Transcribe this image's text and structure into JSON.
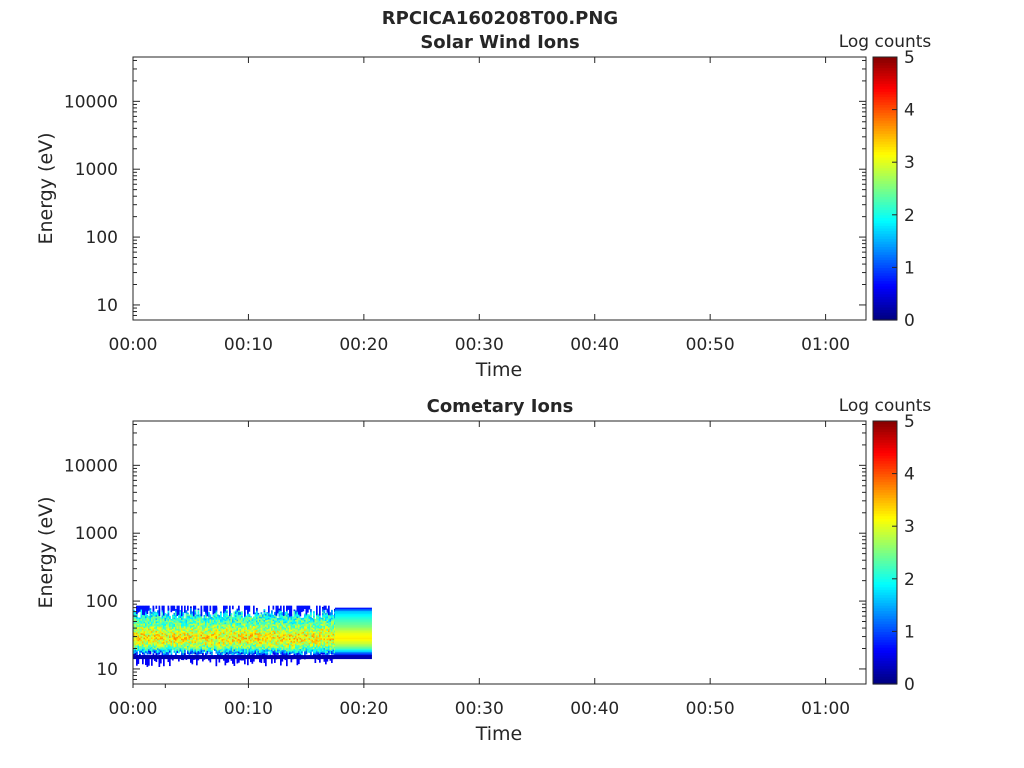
{
  "figure_title": "RPCICA160208T00.PNG",
  "chart_data": [
    {
      "type": "heatmap",
      "title": "Solar Wind Ions",
      "xlabel": "Time",
      "ylabel": "Energy (eV)",
      "y_scale": "log",
      "xlim_minutes": [
        0,
        63.5
      ],
      "ylim": [
        6,
        45000
      ],
      "x_tick_labels": [
        "00:00",
        "00:10",
        "00:20",
        "00:30",
        "00:40",
        "00:50",
        "01:00"
      ],
      "x_tick_minutes": [
        0,
        10,
        20,
        30,
        40,
        50,
        60
      ],
      "y_tick_labels": [
        "10",
        "100",
        "1000",
        "10000"
      ],
      "y_tick_values": [
        10,
        100,
        1000,
        10000
      ],
      "colorbar": {
        "label": "Log counts",
        "min": 0,
        "max": 5,
        "tick_labels": [
          "0",
          "1",
          "2",
          "3",
          "4",
          "5"
        ],
        "colormap": "jet"
      },
      "data_coverage": null,
      "grid": false
    },
    {
      "type": "heatmap",
      "title": "Cometary Ions",
      "xlabel": "Time",
      "ylabel": "Energy (eV)",
      "y_scale": "log",
      "xlim_minutes": [
        0,
        63.5
      ],
      "ylim": [
        6,
        45000
      ],
      "x_tick_labels": [
        "00:00",
        "00:10",
        "00:20",
        "00:30",
        "00:40",
        "00:50",
        "01:00"
      ],
      "x_tick_minutes": [
        0,
        10,
        20,
        30,
        40,
        50,
        60
      ],
      "y_tick_labels": [
        "10",
        "100",
        "1000",
        "10000"
      ],
      "y_tick_values": [
        10,
        100,
        1000,
        10000
      ],
      "colorbar": {
        "label": "Log counts",
        "min": 0,
        "max": 5,
        "tick_labels": [
          "0",
          "1",
          "2",
          "3",
          "4",
          "5"
        ],
        "colormap": "jet"
      },
      "data_coverage": {
        "x_start_minutes": 0,
        "x_noisy_end_minutes": 17.5,
        "x_end_minutes": 20.7,
        "energy_low": 16,
        "energy_high": 80,
        "band_profile": [
          {
            "energy": 80,
            "log_counts": 0.5
          },
          {
            "energy": 70,
            "log_counts": 1.6
          },
          {
            "energy": 55,
            "log_counts": 2.1
          },
          {
            "energy": 42,
            "log_counts": 2.5
          },
          {
            "energy": 34,
            "log_counts": 3.0
          },
          {
            "energy": 28,
            "log_counts": 3.2
          },
          {
            "energy": 23,
            "log_counts": 2.8
          },
          {
            "energy": 20,
            "log_counts": 2.3
          },
          {
            "energy": 18,
            "log_counts": 1.6
          },
          {
            "energy": 16,
            "log_counts": 0.6
          }
        ]
      },
      "grid": false
    }
  ]
}
